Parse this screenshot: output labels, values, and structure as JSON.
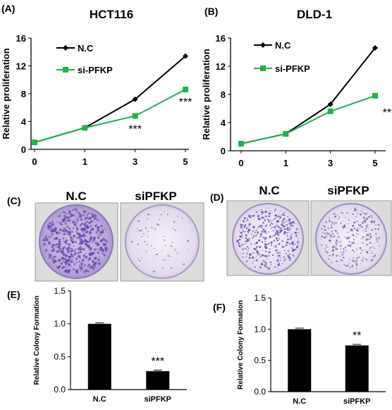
{
  "panels": {
    "A": "(A)",
    "B": "(B)",
    "C": "(C)",
    "D": "(D)",
    "E": "(E)",
    "F": "(F)"
  },
  "colors": {
    "nc": "#000000",
    "si": "#22b14c",
    "dish_stain": "#6a4fae",
    "dish_bg": "#ece7f2",
    "bar": "#000000"
  },
  "colony_images": {
    "C": {
      "left_label": "N.C",
      "right_label": "siPFKP"
    },
    "D": {
      "left_label": "N.C",
      "right_label": "siPFKP"
    }
  },
  "chart_data": [
    {
      "panel": "A",
      "type": "line",
      "title": "HCT116",
      "ylabel": "Relative proliferation",
      "xlabel": "",
      "categories": [
        "0",
        "1",
        "3",
        "5"
      ],
      "ylim": [
        0,
        16
      ],
      "yticks": [
        0,
        4,
        8,
        12,
        16
      ],
      "legend_placement": "top-left",
      "series": [
        {
          "name": "N.C",
          "color_key": "nc",
          "marker": "diamond",
          "values": [
            1.0,
            3.1,
            7.2,
            13.4
          ]
        },
        {
          "name": "si-PFKP",
          "color_key": "si",
          "marker": "square",
          "values": [
            1.0,
            3.1,
            4.8,
            8.6
          ]
        }
      ],
      "annotations": [
        {
          "text": "***",
          "category_index": 2,
          "y": 3.0
        },
        {
          "text": "***",
          "category_index": 3,
          "y": 6.9
        }
      ]
    },
    {
      "panel": "B",
      "type": "line",
      "title": "DLD-1",
      "ylabel": "Relative proliferation",
      "xlabel": "",
      "categories": [
        "0",
        "1",
        "3",
        "5"
      ],
      "ylim": [
        0,
        16
      ],
      "yticks": [
        0,
        4,
        8,
        12,
        16
      ],
      "legend_placement": "top-left",
      "series": [
        {
          "name": "N.C",
          "color_key": "nc",
          "marker": "diamond",
          "values": [
            1.0,
            2.4,
            6.6,
            14.6
          ]
        },
        {
          "name": "si-PFKP",
          "color_key": "si",
          "marker": "square",
          "values": [
            1.0,
            2.4,
            5.6,
            7.8
          ]
        }
      ],
      "annotations": [
        {
          "text": "***",
          "category_index": 3,
          "y": 5.5
        }
      ]
    },
    {
      "panel": "E",
      "type": "bar",
      "title": "",
      "ylabel": "Relative Colony Formation",
      "xlabel": "",
      "categories": [
        "N.C",
        "siPFKP"
      ],
      "values": [
        1.0,
        0.28
      ],
      "ylim": [
        0,
        1.5
      ],
      "yticks": [
        "0.0",
        "0.5",
        "1.0",
        "1.5"
      ],
      "annotations": [
        {
          "text": "***",
          "category_index": 1
        }
      ]
    },
    {
      "panel": "F",
      "type": "bar",
      "title": "",
      "ylabel": "Relative Colony Formation",
      "xlabel": "",
      "categories": [
        "N.C",
        "siPFKP"
      ],
      "values": [
        1.0,
        0.74
      ],
      "ylim": [
        0,
        1.5
      ],
      "yticks": [
        "0.0",
        "0.5",
        "1.0",
        "1.5"
      ],
      "annotations": [
        {
          "text": "**",
          "category_index": 1
        }
      ]
    }
  ]
}
